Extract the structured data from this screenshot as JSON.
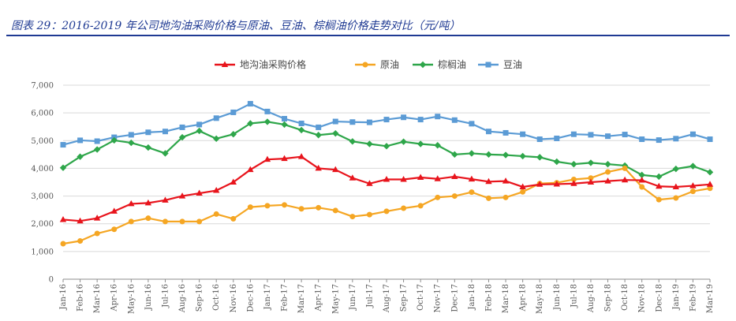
{
  "figure_title": "图表 29：2016-2019 年公司地沟油采购价格与原油、豆油、棕榈油价格走势对比（元/吨）",
  "chart_data": {
    "type": "line",
    "categories": [
      "Jan-16",
      "Feb-16",
      "Mar-16",
      "Apr-16",
      "May-16",
      "Jun-16",
      "Jul-16",
      "Aug-16",
      "Sep-16",
      "Oct-16",
      "Nov-16",
      "Dec-16",
      "Jan-17",
      "Feb-17",
      "Mar-17",
      "Apr-17",
      "May-17",
      "Jun-17",
      "Jul-17",
      "Aug-17",
      "Sep-17",
      "Oct-17",
      "Nov-17",
      "Dec-17",
      "Jan-18",
      "Feb-18",
      "Mar-18",
      "Apr-18",
      "May-18",
      "Jun-18",
      "Jul-18",
      "Aug-18",
      "Sep-18",
      "Oct-18",
      "Nov-18",
      "Dec-18",
      "Jan-19",
      "Feb-19",
      "Mar-19"
    ],
    "ylim": [
      0,
      7000
    ],
    "yticks": [
      "0",
      "1,000",
      "2,000",
      "3,000",
      "4,000",
      "5,000",
      "6,000",
      "7,000"
    ],
    "ytick_values": [
      0,
      1000,
      2000,
      3000,
      4000,
      5000,
      6000,
      7000
    ],
    "legend_position": "top",
    "grid": "horizontal",
    "series": [
      {
        "name": "地沟油采购价格",
        "color": "#e8141c",
        "marker": "triangle",
        "values": [
          2150,
          2100,
          2200,
          2450,
          2720,
          2750,
          2850,
          3000,
          3100,
          3200,
          3500,
          3950,
          4320,
          4350,
          4420,
          4000,
          3950,
          3650,
          3450,
          3600,
          3600,
          3670,
          3620,
          3700,
          3610,
          3520,
          3540,
          3330,
          3420,
          3430,
          3450,
          3500,
          3540,
          3580,
          3570,
          3350,
          3330,
          3370,
          3420
        ]
      },
      {
        "name": "原油",
        "color": "#f5a623",
        "marker": "circle",
        "values": [
          1280,
          1380,
          1650,
          1800,
          2080,
          2200,
          2080,
          2080,
          2080,
          2350,
          2180,
          2600,
          2650,
          2680,
          2540,
          2580,
          2480,
          2260,
          2330,
          2450,
          2560,
          2650,
          2950,
          3000,
          3140,
          2920,
          2950,
          3150,
          3450,
          3480,
          3600,
          3650,
          3870,
          4000,
          3330,
          2870,
          2930,
          3170,
          3280
        ]
      },
      {
        "name": "棕榈油",
        "color": "#2ea64a",
        "marker": "diamond",
        "values": [
          4020,
          4420,
          4680,
          5010,
          4920,
          4750,
          4540,
          5120,
          5350,
          5070,
          5230,
          5620,
          5680,
          5580,
          5380,
          5200,
          5260,
          4970,
          4880,
          4800,
          4960,
          4880,
          4830,
          4500,
          4540,
          4500,
          4480,
          4440,
          4400,
          4240,
          4150,
          4200,
          4150,
          4100,
          3760,
          3700,
          3980,
          4080,
          3860
        ]
      },
      {
        "name": "豆油",
        "color": "#5b9bd5",
        "marker": "square",
        "values": [
          4850,
          5010,
          4980,
          5120,
          5210,
          5300,
          5330,
          5480,
          5580,
          5810,
          6020,
          6330,
          6050,
          5790,
          5620,
          5480,
          5690,
          5670,
          5660,
          5760,
          5840,
          5760,
          5870,
          5740,
          5610,
          5330,
          5280,
          5230,
          5050,
          5080,
          5230,
          5210,
          5160,
          5220,
          5050,
          5020,
          5070,
          5230,
          5050
        ]
      }
    ]
  }
}
